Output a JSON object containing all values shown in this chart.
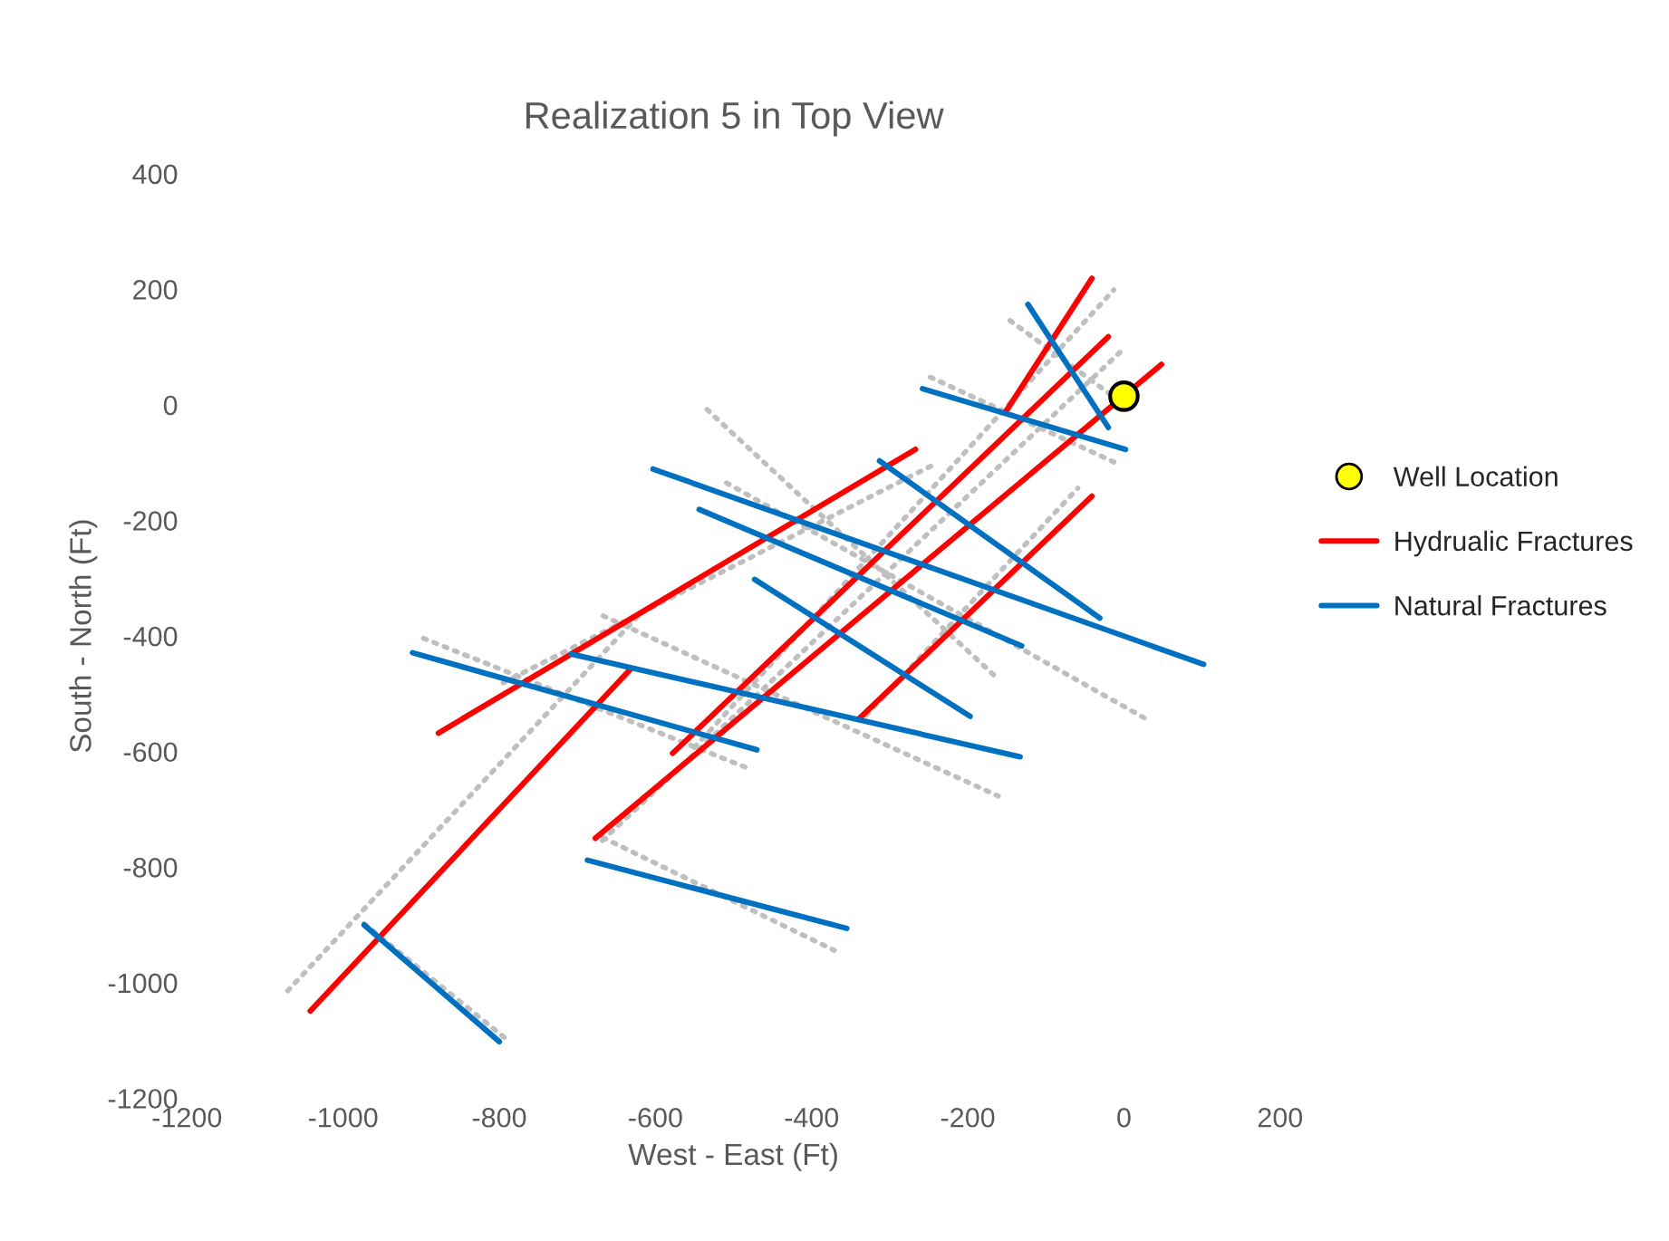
{
  "chart_data": {
    "type": "line",
    "title": "Realization 5 in Top View",
    "xlabel": "West - East (Ft)",
    "ylabel": "South - North (Ft)",
    "xlim": [
      -1200,
      200
    ],
    "xticks": [
      -1200,
      -1000,
      -800,
      -600,
      -400,
      -200,
      0,
      200
    ],
    "ylim": [
      -1200,
      400
    ],
    "yticks": [
      -1200,
      -1000,
      -800,
      -600,
      -400,
      -200,
      0,
      200,
      400
    ],
    "grid": false,
    "legend": "right",
    "series": [
      {
        "color": "#bfbfbf",
        "line_style": "dotted",
        "marker": "none",
        "x": [
          -1071,
          -620,
          null,
          -795,
          -243,
          null,
          -550,
          -13,
          null,
          -668,
          2,
          null,
          -330,
          -59,
          null,
          -146,
          12,
          null,
          -248,
          -8,
          null,
          -534,
          -167,
          null,
          -509,
          33,
          null,
          -667,
          -161,
          null,
          -897,
          -483,
          null,
          -667,
          -371,
          null,
          -973,
          -787
        ],
        "values": [
          -1014,
          -362,
          null,
          -481,
          -103,
          null,
          -593,
          199,
          null,
          -754,
          100,
          null,
          -537,
          -144,
          null,
          146,
          -11,
          null,
          48,
          -102,
          null,
          -8,
          -467,
          null,
          -135,
          -547,
          null,
          -365,
          -677,
          null,
          -404,
          -628,
          null,
          -749,
          -944,
          null,
          -898,
          -1102
        ]
      },
      {
        "name": "Well Location",
        "type": "scatter",
        "color": "#ffff00",
        "marker": "circle",
        "x": [
          0
        ],
        "values": [
          15
        ]
      },
      {
        "name": "Hydrualic Fractures",
        "color": "#ff0000",
        "line_style": "solid",
        "marker": "none",
        "x": [
          -1042,
          -631,
          null,
          -878,
          -267,
          null,
          -578,
          -20,
          null,
          -677,
          48,
          null,
          -151,
          -41,
          null,
          -340,
          -41
        ],
        "values": [
          -1049,
          -456,
          null,
          -568,
          -77,
          null,
          -603,
          118,
          null,
          -750,
          70,
          null,
          -11,
          219,
          null,
          -544,
          -158
        ]
      },
      {
        "name": "Natural Fractures",
        "color": "#0070c0",
        "line_style": "solid",
        "marker": "none",
        "x": [
          -123,
          -20,
          null,
          -258,
          2,
          null,
          -313,
          -31,
          null,
          -603,
          102,
          null,
          -544,
          -131,
          null,
          -473,
          -197,
          null,
          -708,
          -133,
          null,
          -911,
          -470,
          null,
          -687,
          -355,
          null,
          -973,
          -800
        ],
        "values": [
          174,
          -39,
          null,
          28,
          -77,
          null,
          -97,
          -369,
          null,
          -111,
          -449,
          null,
          -181,
          -417,
          null,
          -302,
          -539,
          null,
          -431,
          -609,
          null,
          -429,
          -597,
          null,
          -788,
          -906,
          null,
          -900,
          -1102
        ]
      }
    ]
  }
}
